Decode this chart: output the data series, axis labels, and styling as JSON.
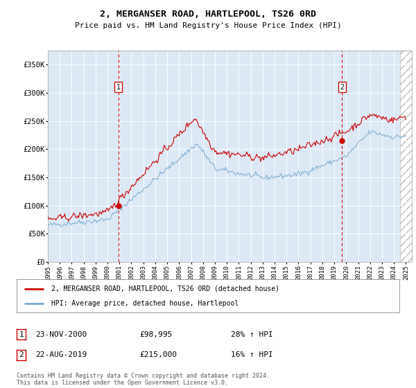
{
  "title": "2, MERGANSER ROAD, HARTLEPOOL, TS26 0RD",
  "subtitle": "Price paid vs. HM Land Registry's House Price Index (HPI)",
  "ylim": [
    0,
    375000
  ],
  "yticks": [
    0,
    50000,
    100000,
    150000,
    200000,
    250000,
    300000,
    350000
  ],
  "ytick_labels": [
    "£0",
    "£50K",
    "£100K",
    "£150K",
    "£200K",
    "£250K",
    "£300K",
    "£350K"
  ],
  "background_color": "#dce9f5",
  "red_line_color": "#cc0000",
  "blue_line_color": "#7aaad0",
  "marker1_date_x": 2000.9,
  "marker1_price": 98995,
  "marker2_date_x": 2019.65,
  "marker2_price": 215000,
  "legend_red_label": "2, MERGANSER ROAD, HARTLEPOOL, TS26 0RD (detached house)",
  "legend_blue_label": "HPI: Average price, detached house, Hartlepool",
  "annotation1_date": "23-NOV-2000",
  "annotation1_price": "£98,995",
  "annotation1_hpi": "28% ↑ HPI",
  "annotation2_date": "22-AUG-2019",
  "annotation2_price": "£215,000",
  "annotation2_hpi": "16% ↑ HPI",
  "footer": "Contains HM Land Registry data © Crown copyright and database right 2024.\nThis data is licensed under the Open Government Licence v3.0.",
  "xmin": 1995,
  "xmax": 2025.5,
  "future_start": 2024.5
}
